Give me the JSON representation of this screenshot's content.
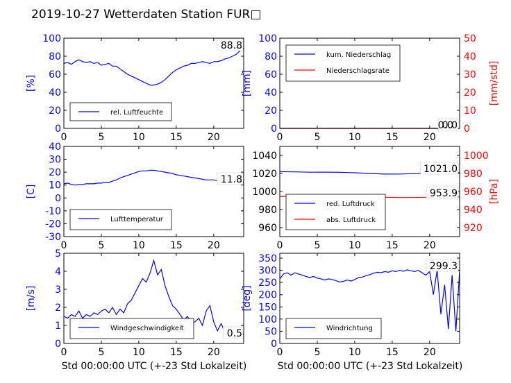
{
  "title": "2019-10-27 Wetterdaten Station FUR□",
  "xlabel": "Std 00:00:00 UTC (+-23 Std Lokalzeit)",
  "colors": {
    "blue": "#0000ff",
    "red": "#ff0000",
    "black": "#000000"
  },
  "chart_data": [
    {
      "type": "line",
      "panel": "humidity",
      "ylabel": "[%]",
      "xlim": [
        0,
        24
      ],
      "ylim": [
        0,
        100
      ],
      "xticks": [
        0,
        5,
        10,
        15,
        20
      ],
      "yticks": [
        0,
        20,
        40,
        60,
        80,
        100
      ],
      "annotation": "88.8",
      "legend_position": "lower-left",
      "series": [
        {
          "name": "rel. Luftfeuchte",
          "color": "#0000ff",
          "x": [
            0,
            0.5,
            1,
            1.5,
            2,
            2.5,
            3,
            3.5,
            4,
            4.5,
            5,
            5.5,
            6,
            6.5,
            7,
            7.5,
            8,
            8.5,
            9,
            9.5,
            10,
            10.5,
            11,
            11.5,
            12,
            12.5,
            13,
            13.5,
            14,
            14.5,
            15,
            15.5,
            16,
            16.5,
            17,
            17.5,
            18,
            18.5,
            19,
            19.5,
            20,
            20.5,
            21,
            21.5,
            22,
            22.5,
            23,
            23.5,
            24
          ],
          "y": [
            72,
            73,
            71,
            74,
            76,
            74,
            73,
            74,
            72,
            73,
            70,
            71,
            72,
            69,
            69,
            66,
            63,
            60,
            58,
            56,
            54,
            52,
            50,
            48,
            48,
            49,
            51,
            54,
            58,
            62,
            65,
            67,
            69,
            70,
            72,
            72,
            73,
            74,
            73,
            72,
            74,
            74,
            75,
            77,
            78,
            80,
            82,
            86,
            89
          ]
        }
      ]
    },
    {
      "type": "line",
      "panel": "precipitation",
      "ylabel": "[mm]",
      "ylabel_right": "[mm/std]",
      "xlim": [
        0,
        24
      ],
      "ylim": [
        0,
        100
      ],
      "ylim_right": [
        0,
        50
      ],
      "xticks": [
        0,
        5,
        10,
        15,
        20
      ],
      "yticks": [
        0,
        20,
        40,
        60,
        80,
        100
      ],
      "yticks_right": [
        0,
        10,
        20,
        30,
        40,
        50
      ],
      "annotations": [
        "0.0",
        "0.0"
      ],
      "legend_position": "top-left",
      "series": [
        {
          "name": "kum. Niederschlag",
          "color": "#0000ff",
          "axis": "left",
          "x": [
            0,
            24
          ],
          "y": [
            0,
            0
          ]
        },
        {
          "name": "Niederschlagsrate",
          "color": "#ff0000",
          "axis": "right",
          "x": [
            0,
            24
          ],
          "y": [
            0,
            0
          ]
        }
      ]
    },
    {
      "type": "line",
      "panel": "temperature",
      "ylabel": "[C]",
      "xlim": [
        0,
        24
      ],
      "ylim": [
        -30,
        40
      ],
      "xticks": [
        0,
        5,
        10,
        15,
        20
      ],
      "yticks": [
        -30,
        -20,
        -10,
        0,
        10,
        20,
        30,
        40
      ],
      "annotation": "11.8",
      "legend_position": "lower-left",
      "series": [
        {
          "name": "Lufttemperatur",
          "color": "#0000ff",
          "x": [
            0,
            0.5,
            1,
            1.5,
            2,
            2.5,
            3,
            3.5,
            4,
            4.5,
            5,
            5.5,
            6,
            6.5,
            7,
            7.5,
            8,
            8.5,
            9,
            9.5,
            10,
            10.5,
            11,
            11.5,
            12,
            12.5,
            13,
            13.5,
            14,
            14.5,
            15,
            15.5,
            16,
            16.5,
            17,
            17.5,
            18,
            18.5,
            19,
            19.5,
            20,
            20.5,
            21,
            21.5,
            22,
            22.5,
            23,
            23.5,
            24
          ],
          "y": [
            11,
            11.5,
            10.5,
            10,
            10.5,
            10.5,
            11,
            11,
            11,
            11.5,
            11.5,
            12,
            12,
            13,
            14,
            15.5,
            16.5,
            17.5,
            18.5,
            19.5,
            20.5,
            21,
            21,
            21.5,
            21.5,
            21,
            20.5,
            20,
            19.5,
            19,
            18,
            17.5,
            17,
            16.5,
            16,
            15.5,
            15,
            14.5,
            14,
            14,
            14,
            13.5,
            13,
            13,
            12.5,
            12.5,
            12,
            12,
            11.8
          ]
        }
      ]
    },
    {
      "type": "line",
      "panel": "pressure",
      "ylabel_right": "[hPa]",
      "xlim": [
        0,
        24
      ],
      "ylim": [
        950,
        1050
      ],
      "ylim_right": [
        910,
        1010
      ],
      "xticks": [
        0,
        5,
        10,
        15,
        20
      ],
      "yticks": [
        960,
        980,
        1000,
        1020,
        1040
      ],
      "yticks_right": [
        920,
        940,
        960,
        980,
        1000
      ],
      "annotations": [
        "1021.0",
        "953.9"
      ],
      "legend_position": "lower-left",
      "series": [
        {
          "name": "red. Luftdruck",
          "color": "#0000ff",
          "axis": "left",
          "x": [
            0,
            2,
            4,
            6,
            8,
            10,
            12,
            14,
            16,
            18,
            20,
            22,
            24
          ],
          "y": [
            1022,
            1021.8,
            1021.4,
            1021.5,
            1021.3,
            1020.8,
            1020,
            1019.3,
            1019.4,
            1019.8,
            1020.3,
            1020.7,
            1021
          ]
        },
        {
          "name": "abs. Luftdruck",
          "color": "#ff0000",
          "axis": "right",
          "x": [
            0,
            2,
            4,
            6,
            8,
            10,
            12,
            14,
            16,
            18,
            20,
            22,
            24
          ],
          "y": [
            954.5,
            954.5,
            954.6,
            954.8,
            955,
            954.8,
            954.2,
            953.6,
            953.3,
            953.3,
            953.6,
            953.8,
            953.9
          ]
        }
      ]
    },
    {
      "type": "line",
      "panel": "wind-speed",
      "ylabel": "[m/s]",
      "xlim": [
        0,
        24
      ],
      "ylim": [
        0,
        5
      ],
      "xticks": [
        0,
        5,
        10,
        15,
        20
      ],
      "yticks": [
        0,
        1,
        2,
        3,
        4,
        5
      ],
      "annotation": "0.5",
      "legend_position": "lower-left",
      "series": [
        {
          "name": "Windgeschwindigkeit",
          "color": "#0000ff",
          "x": [
            0,
            0.5,
            1,
            1.5,
            2,
            2.5,
            3,
            3.5,
            4,
            4.5,
            5,
            5.5,
            6,
            6.5,
            7,
            7.5,
            8,
            8.5,
            9,
            9.5,
            10,
            10.5,
            11,
            11.5,
            12,
            12.5,
            13,
            13.5,
            14,
            14.5,
            15,
            15.5,
            16,
            16.5,
            17,
            17.5,
            18,
            18.5,
            19,
            19.5,
            20,
            20.5,
            21,
            21.5,
            22,
            22.5,
            23,
            23.5,
            24
          ],
          "y": [
            1.5,
            1.4,
            1.6,
            1.5,
            1.8,
            1.4,
            1.6,
            1.5,
            1.7,
            1.6,
            1.8,
            1.9,
            1.7,
            2.0,
            1.6,
            1.9,
            1.7,
            2.2,
            2.4,
            2.8,
            3.2,
            3.6,
            3.4,
            3.9,
            4.6,
            3.8,
            4.1,
            3.2,
            2.6,
            2.1,
            1.9,
            1.6,
            1.3,
            1.5,
            1.1,
            1.2,
            1.4,
            1.0,
            1.8,
            2.1,
            1.2,
            0.7,
            1.1,
            0.6,
            0.9,
            0.5,
            0.4,
            0.6,
            0.5
          ]
        }
      ]
    },
    {
      "type": "line",
      "panel": "wind-direction",
      "ylabel": "[deg]",
      "xlim": [
        0,
        24
      ],
      "ylim": [
        0,
        370
      ],
      "xticks": [
        0,
        5,
        10,
        15,
        20
      ],
      "yticks": [
        0,
        50,
        100,
        150,
        200,
        250,
        300,
        350
      ],
      "annotation": "299.3",
      "legend_position": "lower-left",
      "series": [
        {
          "name": "Windrichtung",
          "color": "#0000ff",
          "x": [
            0,
            0.5,
            1,
            1.5,
            2,
            2.5,
            3,
            3.5,
            4,
            4.5,
            5,
            5.5,
            6,
            6.5,
            7,
            7.5,
            8,
            8.5,
            9,
            9.5,
            10,
            10.5,
            11,
            11.5,
            12,
            12.5,
            13,
            13.5,
            14,
            14.5,
            15,
            15.5,
            16,
            16.5,
            17,
            17.5,
            18,
            18.5,
            19,
            19.5,
            20,
            20.5,
            21,
            21.5,
            22,
            22.5,
            23,
            23.5,
            24
          ],
          "y": [
            265,
            285,
            290,
            280,
            290,
            285,
            280,
            275,
            270,
            275,
            268,
            265,
            260,
            265,
            262,
            258,
            252,
            255,
            260,
            256,
            262,
            270,
            272,
            278,
            282,
            288,
            292,
            290,
            295,
            292,
            298,
            295,
            300,
            296,
            302,
            298,
            295,
            300,
            290,
            280,
            295,
            200,
            300,
            120,
            240,
            60,
            280,
            50,
            299
          ]
        }
      ]
    }
  ]
}
